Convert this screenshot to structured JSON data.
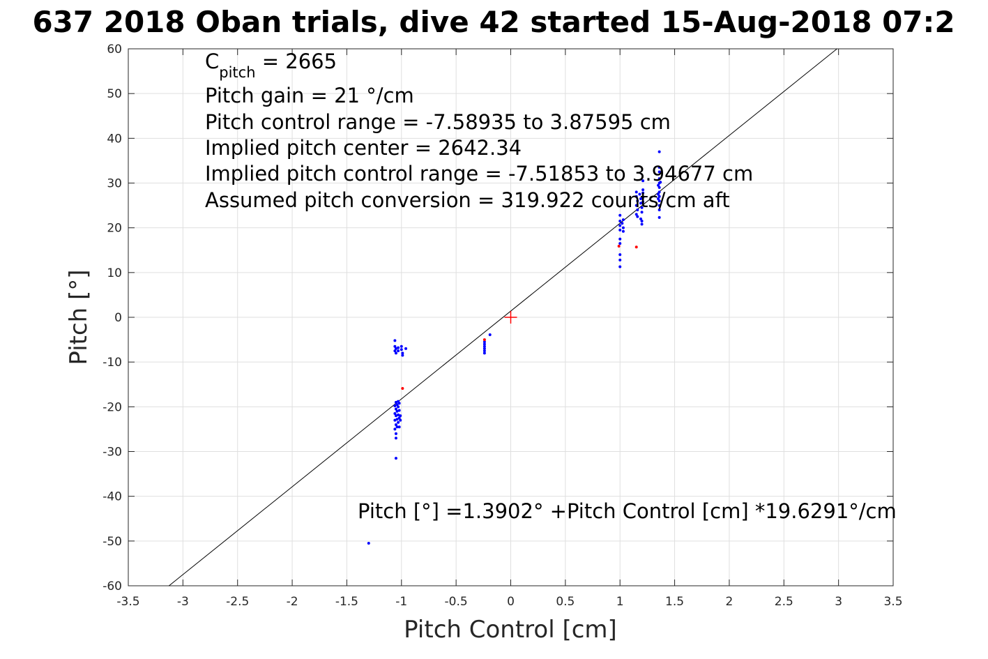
{
  "chart_data": {
    "type": "scatter",
    "title": "637 2018 Oban trials, dive 42 started 15-Aug-2018 07:2",
    "xlabel": "Pitch Control [cm]",
    "ylabel": "Pitch [°]",
    "xlim": [
      -3.5,
      3.5
    ],
    "ylim": [
      -60,
      60
    ],
    "xticks": [
      "-3.5",
      "-3",
      "-2.5",
      "-2",
      "-1.5",
      "-1",
      "-0.5",
      "0",
      "0.5",
      "1",
      "1.5",
      "2",
      "2.5",
      "3",
      "3.5"
    ],
    "yticks": [
      "-60",
      "-50",
      "-40",
      "-30",
      "-20",
      "-10",
      "0",
      "10",
      "20",
      "30",
      "40",
      "50",
      "60"
    ],
    "grid": true,
    "annotations": {
      "c_pitch_symbol": "C",
      "c_pitch_subscript": "pitch",
      "c_pitch_value": " = 2665",
      "lines": [
        "Pitch gain = 21 °/cm",
        "Pitch control range = -7.58935 to 3.87595 cm",
        "Implied pitch center = 2642.34",
        "Implied pitch control range = -7.51853 to 3.94677 cm",
        "Assumed pitch conversion = 319.922 counts/cm aft"
      ],
      "fit_equation": "Pitch [°] =1.3902° +Pitch Control [cm] *19.6291°/cm"
    },
    "fit_line": {
      "intercept": 1.3902,
      "slope": 19.6291,
      "color": "#000000"
    },
    "center_marker": {
      "x": 0,
      "y": 0,
      "color": "#ff0000"
    },
    "series": [
      {
        "color": "#0000ff",
        "points": [
          [
            -1.3,
            -50.5
          ],
          [
            -1.05,
            -31.5
          ],
          [
            -1.05,
            -27
          ],
          [
            -1.05,
            -26
          ],
          [
            -1.06,
            -25
          ],
          [
            -1.04,
            -24.5
          ],
          [
            -1.05,
            -24
          ],
          [
            -1.03,
            -23.5
          ],
          [
            -1.06,
            -23
          ],
          [
            -1.04,
            -22.8
          ],
          [
            -1.02,
            -22.5
          ],
          [
            -1.05,
            -22
          ],
          [
            -1.03,
            -21.8
          ],
          [
            -1.06,
            -21.5
          ],
          [
            -1.04,
            -21
          ],
          [
            -1.02,
            -20.8
          ],
          [
            -1.05,
            -20.5
          ],
          [
            -1.03,
            -20
          ],
          [
            -1.06,
            -19.8
          ],
          [
            -1.04,
            -19.5
          ],
          [
            -1.02,
            -19.2
          ],
          [
            -1.05,
            -19
          ],
          [
            -1.03,
            -18.8
          ],
          [
            -1.01,
            -22
          ],
          [
            -1.01,
            -23
          ],
          [
            -1.02,
            -24.5
          ],
          [
            -1.06,
            -5.2
          ],
          [
            -1.06,
            -6.5
          ],
          [
            -1.05,
            -7
          ],
          [
            -1.06,
            -7.5
          ],
          [
            -1.05,
            -8
          ],
          [
            -1.03,
            -6.8
          ],
          [
            -1.03,
            -7.5
          ],
          [
            -1.0,
            -6.5
          ],
          [
            -1.0,
            -7.2
          ],
          [
            -0.99,
            -8
          ],
          [
            -0.99,
            -8.5
          ],
          [
            -0.96,
            -7
          ],
          [
            -0.24,
            -5.5
          ],
          [
            -0.24,
            -6
          ],
          [
            -0.24,
            -6.5
          ],
          [
            -0.24,
            -7
          ],
          [
            -0.24,
            -7.5
          ],
          [
            -0.24,
            -8
          ],
          [
            -0.19,
            -3.9
          ],
          [
            1.0,
            22.8
          ],
          [
            1.0,
            21.5
          ],
          [
            1.0,
            20.5
          ],
          [
            1.0,
            19.5
          ],
          [
            1.02,
            21
          ],
          [
            1.03,
            20
          ],
          [
            1.03,
            19.2
          ],
          [
            1.03,
            21.8
          ],
          [
            1.0,
            17.5
          ],
          [
            1.0,
            16.5
          ],
          [
            1.0,
            14
          ],
          [
            1.0,
            12.8
          ],
          [
            1.0,
            11.3
          ],
          [
            1.15,
            28
          ],
          [
            1.15,
            27
          ],
          [
            1.16,
            26
          ],
          [
            1.15,
            25
          ],
          [
            1.16,
            24
          ],
          [
            1.15,
            23
          ],
          [
            1.16,
            22.5
          ],
          [
            1.18,
            27.5
          ],
          [
            1.19,
            26.5
          ],
          [
            1.19,
            25.5
          ],
          [
            1.2,
            24.5
          ],
          [
            1.2,
            23.5
          ],
          [
            1.19,
            22
          ],
          [
            1.2,
            21.5
          ],
          [
            1.2,
            20.8
          ],
          [
            1.21,
            30.5
          ],
          [
            1.21,
            28.5
          ],
          [
            1.21,
            27.8
          ],
          [
            1.21,
            26.8
          ],
          [
            1.21,
            25.8
          ],
          [
            1.36,
            37
          ],
          [
            1.36,
            33.5
          ],
          [
            1.36,
            32.5
          ],
          [
            1.36,
            31
          ],
          [
            1.36,
            30
          ],
          [
            1.36,
            29
          ],
          [
            1.36,
            28
          ],
          [
            1.36,
            27
          ],
          [
            1.36,
            26
          ],
          [
            1.36,
            25
          ],
          [
            1.36,
            24
          ],
          [
            1.36,
            22.3
          ],
          [
            1.35,
            29.5
          ],
          [
            1.35,
            27.5
          ],
          [
            1.35,
            26.5
          ],
          [
            1.37,
            30.2
          ]
        ]
      },
      {
        "color": "#ff0000",
        "points": [
          [
            -0.99,
            -15.9
          ],
          [
            -0.24,
            -5
          ],
          [
            0.99,
            15.9
          ],
          [
            1.15,
            15.7
          ]
        ]
      }
    ]
  }
}
